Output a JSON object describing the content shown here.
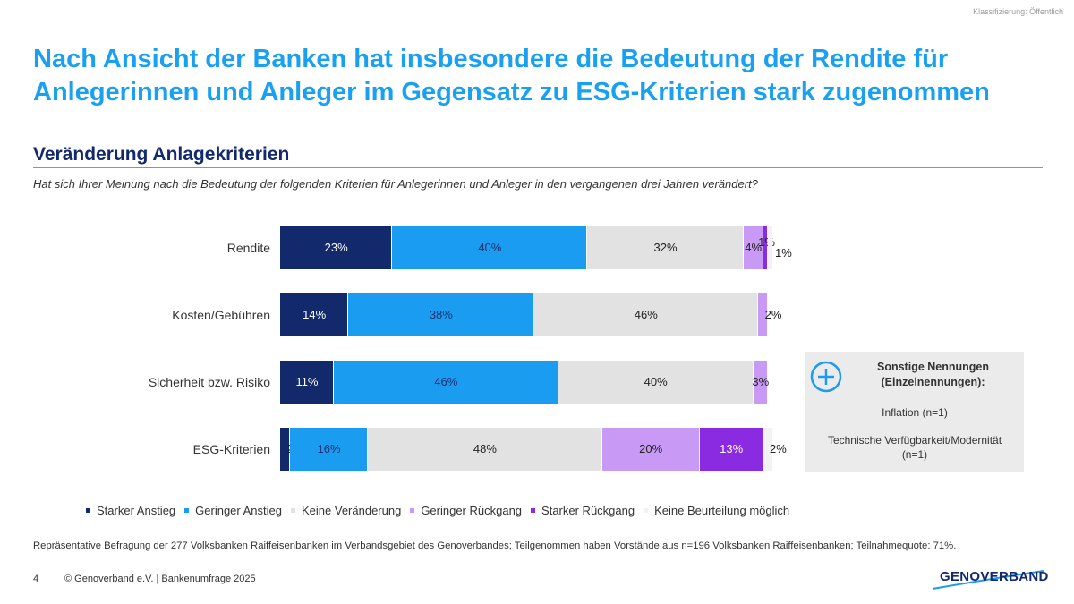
{
  "classification": "Klassifizierung: Öffentlich",
  "title": "Nach Ansicht der Banken hat insbesondere die Bedeutung der Rendite für Anlegerinnen und Anleger im Gegensatz zu ESG-Kriterien stark zugenommen",
  "section_title": "Veränderung Anlagekriterien",
  "question": "Hat sich Ihrer Meinung nach die Bedeutung der folgenden Kriterien für Anlegerinnen und Anleger in den vergangenen drei Jahren verändert?",
  "chart_data": {
    "type": "bar",
    "orientation": "horizontal",
    "stacked": true,
    "unit": "%",
    "categories": [
      "Rendite",
      "Kosten/Gebühren",
      "Sicherheit bzw. Risiko",
      "ESG-Kriterien"
    ],
    "series": [
      {
        "name": "Starker Anstieg",
        "color": "#12296b",
        "values": [
          23,
          14,
          11,
          2
        ]
      },
      {
        "name": "Geringer Anstieg",
        "color": "#1a9cf0",
        "values": [
          40,
          38,
          46,
          16
        ]
      },
      {
        "name": "Keine Veränderung",
        "color": "#e2e2e2",
        "values": [
          32,
          46,
          40,
          48
        ]
      },
      {
        "name": "Geringer Rückgang",
        "color": "#c99af5",
        "values": [
          4,
          2,
          3,
          20
        ]
      },
      {
        "name": "Starker Rückgang",
        "color": "#8a2be2",
        "values": [
          1,
          0,
          0,
          13
        ]
      },
      {
        "name": "Keine Beurteilung möglich",
        "color": "#f2f2f2",
        "values": [
          1,
          0,
          0,
          2
        ]
      }
    ],
    "legend_position": "bottom",
    "grid": false
  },
  "callout": {
    "icon": "plus-circle-icon",
    "title": "Sonstige Nennungen (Einzelnennungen):",
    "item1": "Inflation (n=1)",
    "item2": "Technische Verfügbarkeit/Modernität (n=1)"
  },
  "footnote": "Repräsentative Befragung der 277 Volksbanken Raiffeisenbanken im Verbandsgebiet des Genoverbandes; Teilgenommen haben Vorstände aus n=196 Volksbanken Raiffeisenbanken; Teilnahmequote: 71%.",
  "page_number": "4",
  "copyright": "© Genoverband e.V. | Bankenumfrage 2025",
  "logo_text": "GENOVERBAND",
  "colors": {
    "accent": "#1aa0f0",
    "navy": "#12296b"
  }
}
